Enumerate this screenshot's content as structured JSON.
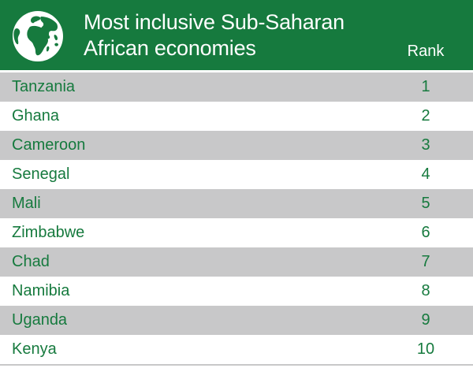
{
  "colors": {
    "brand_green": "#167a3e",
    "row_shade": "#c8c8c9",
    "text_on_header": "#ffffff"
  },
  "header": {
    "icon": "globe-icon",
    "title_line1": "Most inclusive Sub-Saharan",
    "title_line2": "African economies",
    "rank_label": "Rank"
  },
  "chart_data": {
    "type": "table",
    "title": "Most inclusive Sub-Saharan African economies",
    "columns": [
      "",
      "Rank"
    ],
    "rows": [
      {
        "country": "Tanzania",
        "rank": "1"
      },
      {
        "country": "Ghana",
        "rank": "2"
      },
      {
        "country": "Cameroon",
        "rank": "3"
      },
      {
        "country": "Senegal",
        "rank": "4"
      },
      {
        "country": "Mali",
        "rank": "5"
      },
      {
        "country": "Zimbabwe",
        "rank": "6"
      },
      {
        "country": "Chad",
        "rank": "7"
      },
      {
        "country": "Namibia",
        "rank": "8"
      },
      {
        "country": "Uganda",
        "rank": "9"
      },
      {
        "country": "Kenya",
        "rank": "10"
      }
    ]
  }
}
